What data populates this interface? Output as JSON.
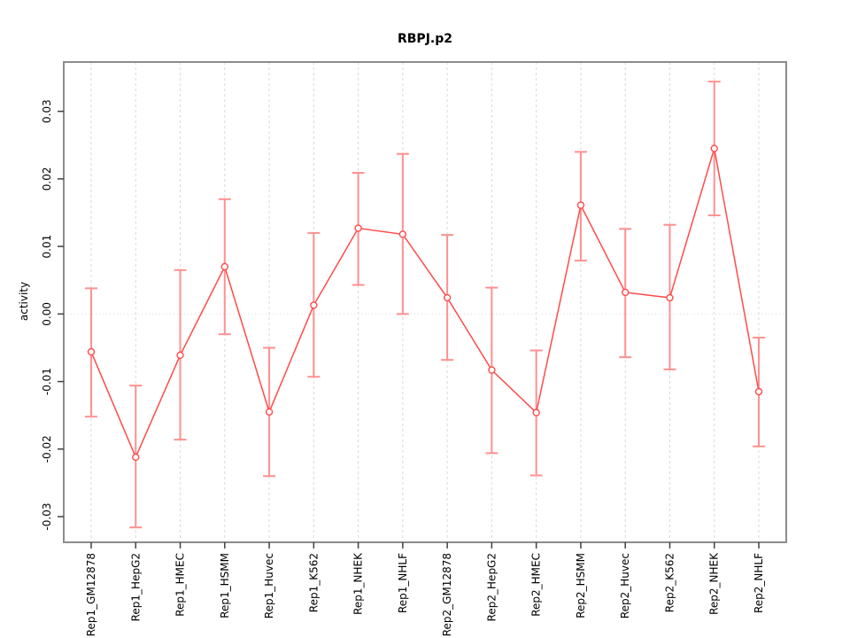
{
  "chart_data": {
    "type": "line",
    "title": "RBPJ.p2",
    "xlabel": "",
    "ylabel": "activity",
    "legend": "none",
    "grid": "vertical dashed gridline at every category; dotted horizontal line at y=0",
    "marker": "open-circle",
    "error_bars": true,
    "ylim": [
      -0.0338,
      0.0373
    ],
    "yticks": [
      0.03,
      0.02,
      0.01,
      0,
      -0.01,
      -0.02,
      -0.03
    ],
    "ytick_labels": [
      "0.03",
      "0.02",
      "0.01",
      "0.00",
      "-0.01",
      "-0.02",
      "-0.03"
    ],
    "categories": [
      "Rep1_GM12878",
      "Rep1_HepG2",
      "Rep1_HMEC",
      "Rep1_HSMM",
      "Rep1_Huvec",
      "Rep1_K562",
      "Rep1_NHEK",
      "Rep1_NHLF",
      "Rep2_GM12878",
      "Rep2_HepG2",
      "Rep2_HMEC",
      "Rep2_HSMM",
      "Rep2_Huvec",
      "Rep2_K562",
      "Rep2_NHEK",
      "Rep2_NHLF"
    ],
    "series": [
      {
        "name": "activity",
        "values": [
          -0.0056,
          -0.0212,
          -0.0061,
          0.007,
          -0.0145,
          0.0013,
          0.0127,
          0.0118,
          0.0024,
          -0.0083,
          -0.0146,
          0.0161,
          0.0032,
          0.0024,
          0.0245,
          -0.0115
        ],
        "error_low": [
          -0.0152,
          -0.0316,
          -0.0186,
          -0.003,
          -0.024,
          -0.0093,
          0.0043,
          0.0,
          -0.0068,
          -0.0206,
          -0.0239,
          0.0079,
          -0.0064,
          -0.0082,
          0.0146,
          -0.0196
        ],
        "error_high": [
          0.0038,
          -0.0106,
          0.0065,
          0.017,
          -0.005,
          0.012,
          0.0209,
          0.0237,
          0.0117,
          0.0039,
          -0.0054,
          0.024,
          0.0126,
          0.0132,
          0.0344,
          -0.0035
        ]
      }
    ],
    "colors": {
      "line": "#ff4a4a",
      "error_bar": "#ff9090",
      "marker_stroke": "#ff4a4a",
      "marker_fill": "#ffffff",
      "gridline": "#d9d9d9",
      "zero_line": "#d9d9d9",
      "box": "#8c8c8c",
      "tick": "#404040",
      "text": "#000000",
      "background": "#ffffff"
    }
  }
}
